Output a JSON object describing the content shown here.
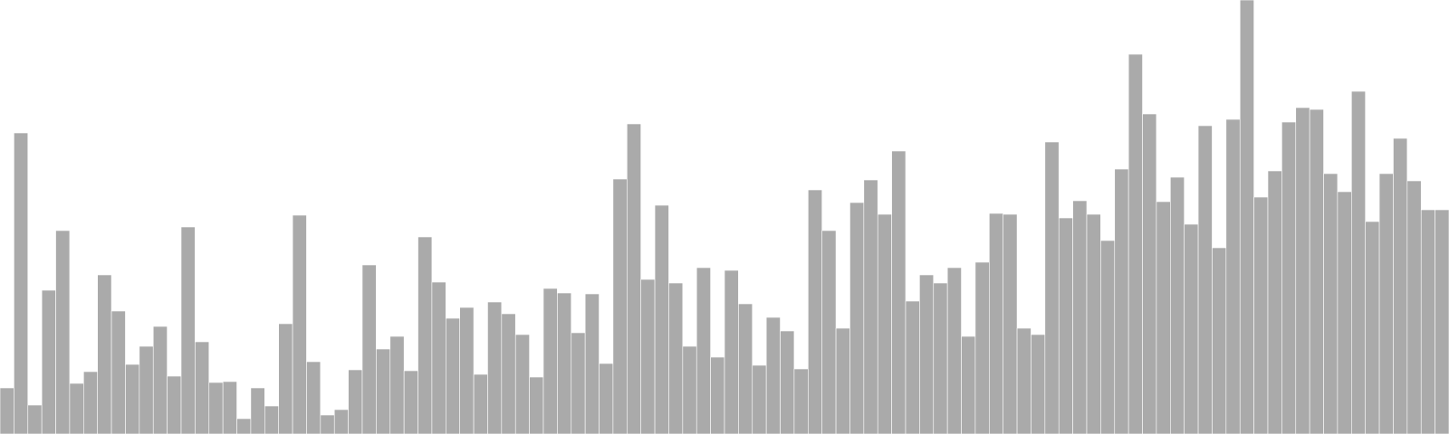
{
  "chart_data": {
    "type": "bar",
    "values": [
      51,
      333,
      32,
      159,
      225,
      56,
      69,
      176,
      136,
      77,
      97,
      119,
      64,
      229,
      102,
      57,
      58,
      17,
      51,
      31,
      122,
      242,
      80,
      21,
      27,
      71,
      187,
      94,
      108,
      70,
      218,
      168,
      128,
      140,
      66,
      146,
      133,
      110,
      63,
      161,
      156,
      112,
      155,
      78,
      282,
      343,
      171,
      253,
      167,
      97,
      184,
      85,
      181,
      144,
      76,
      129,
      114,
      72,
      270,
      225,
      117,
      256,
      281,
      243,
      313,
      147,
      176,
      167,
      184,
      108,
      190,
      244,
      243,
      117,
      110,
      323,
      239,
      258,
      243,
      214,
      293,
      420,
      354,
      257,
      284,
      232,
      341,
      206,
      348,
      480,
      262,
      291,
      345,
      361,
      359,
      288,
      268,
      379,
      235,
      288,
      327,
      280,
      248,
      248
    ],
    "ylim": [
      0,
      480
    ],
    "grid": false,
    "bar_color": "#aaaaaa",
    "bar_edge_color": "#ffffff"
  }
}
